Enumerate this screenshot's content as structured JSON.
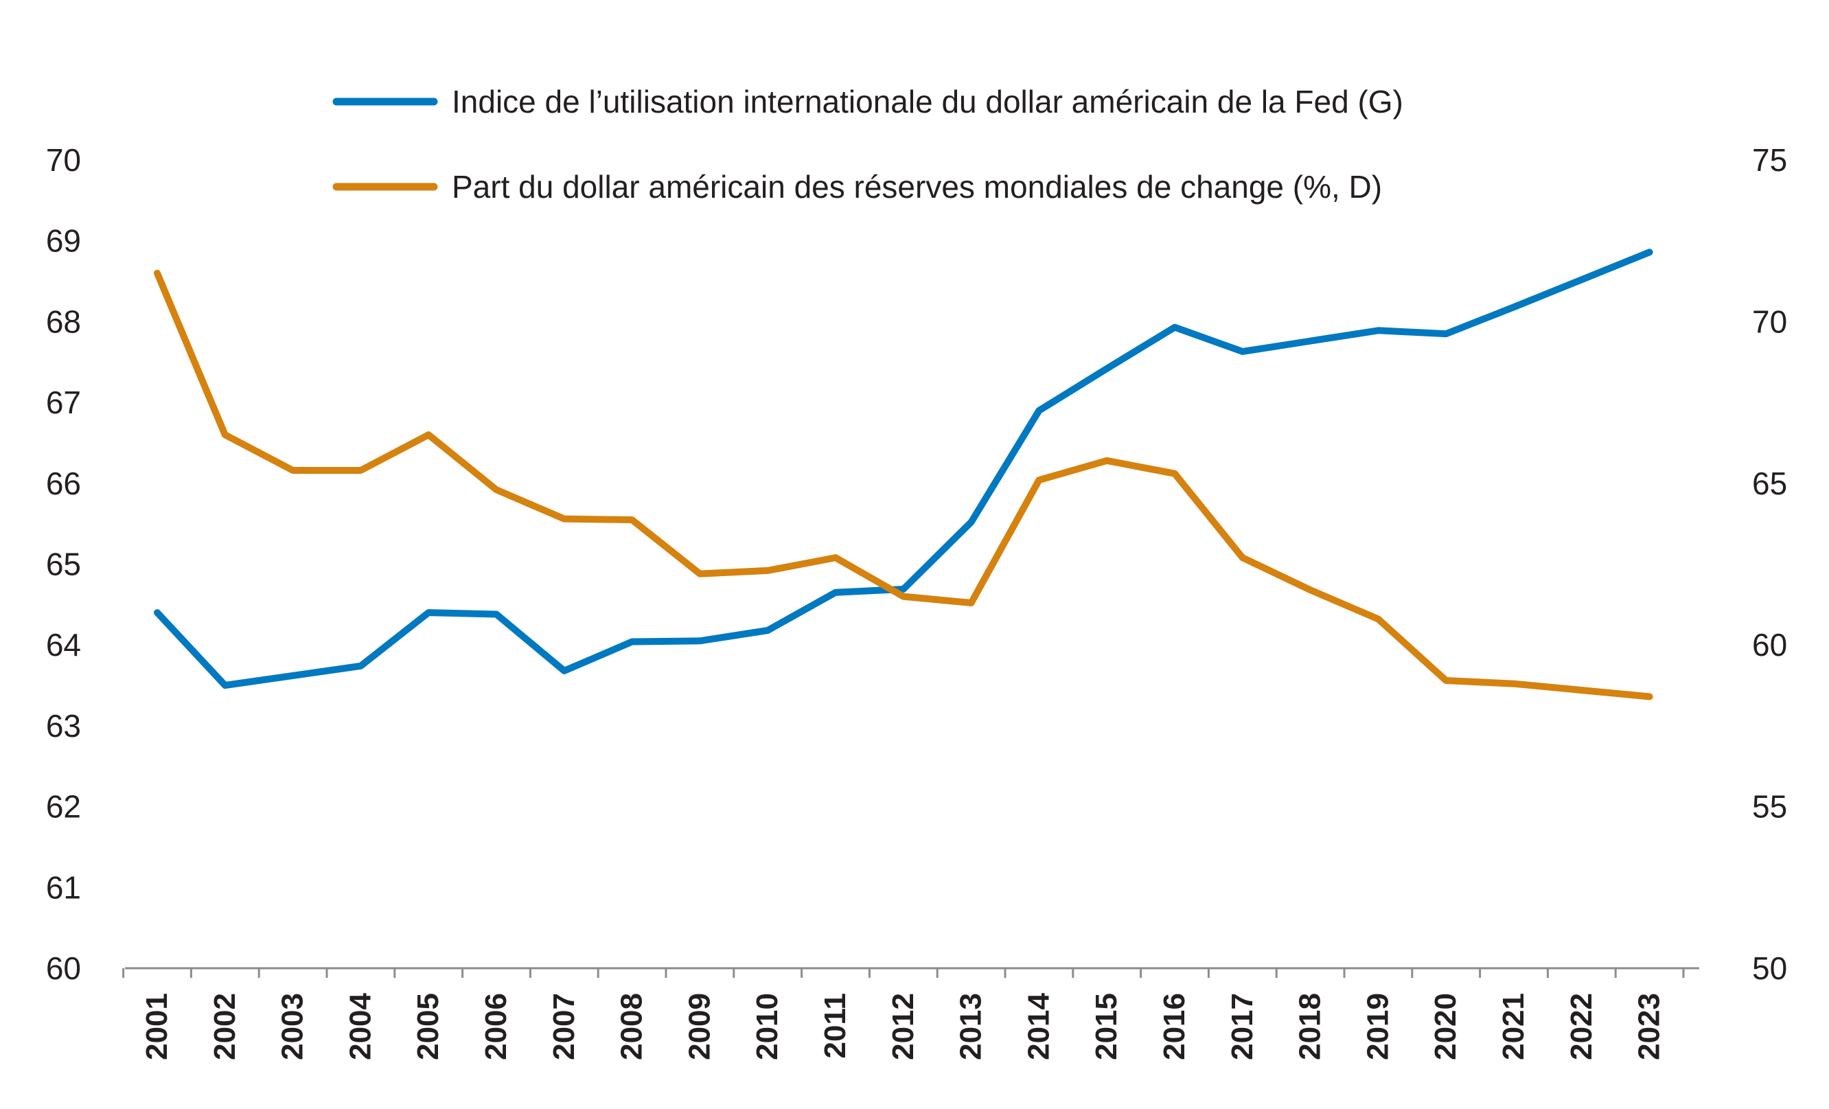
{
  "chart_data": {
    "type": "line",
    "title": "",
    "categories": [
      "2001",
      "2002",
      "2003",
      "2004",
      "2005",
      "2006",
      "2007",
      "2008",
      "2009",
      "2010",
      "2011",
      "2012",
      "2013",
      "2014",
      "2015",
      "2016",
      "2017",
      "2018",
      "2019",
      "2020",
      "2021",
      "2022",
      "2023"
    ],
    "left_axis": {
      "ylim": [
        60,
        70
      ],
      "ticks": [
        "60",
        "61",
        "62",
        "63",
        "64",
        "65",
        "66",
        "67",
        "68",
        "69",
        "70"
      ]
    },
    "right_axis": {
      "ylim": [
        50,
        75
      ],
      "ticks": [
        "50",
        "55",
        "60",
        "65",
        "70",
        "75"
      ]
    },
    "series": [
      {
        "name": "Indice de l’utilisation internationale du dollar américain de la Fed (G)",
        "axis": "left",
        "color": "#0079c1",
        "values": [
          64.4,
          63.5,
          63.62,
          63.74,
          64.4,
          64.38,
          63.68,
          64.04,
          64.05,
          64.18,
          64.65,
          64.69,
          65.52,
          66.9,
          67.42,
          67.93,
          67.63,
          67.76,
          67.89,
          67.85,
          68.18,
          68.52,
          68.86
        ]
      },
      {
        "name": "Part du dollar américain des réserves mondiales de change (%, D)",
        "axis": "right",
        "color": "#d5820f",
        "values": [
          71.5,
          66.5,
          65.4,
          65.4,
          66.5,
          64.8,
          63.9,
          63.87,
          62.2,
          62.3,
          62.7,
          61.5,
          61.3,
          65.1,
          65.7,
          65.3,
          62.7,
          61.7,
          60.8,
          58.9,
          58.8,
          58.6,
          58.4
        ]
      }
    ]
  }
}
